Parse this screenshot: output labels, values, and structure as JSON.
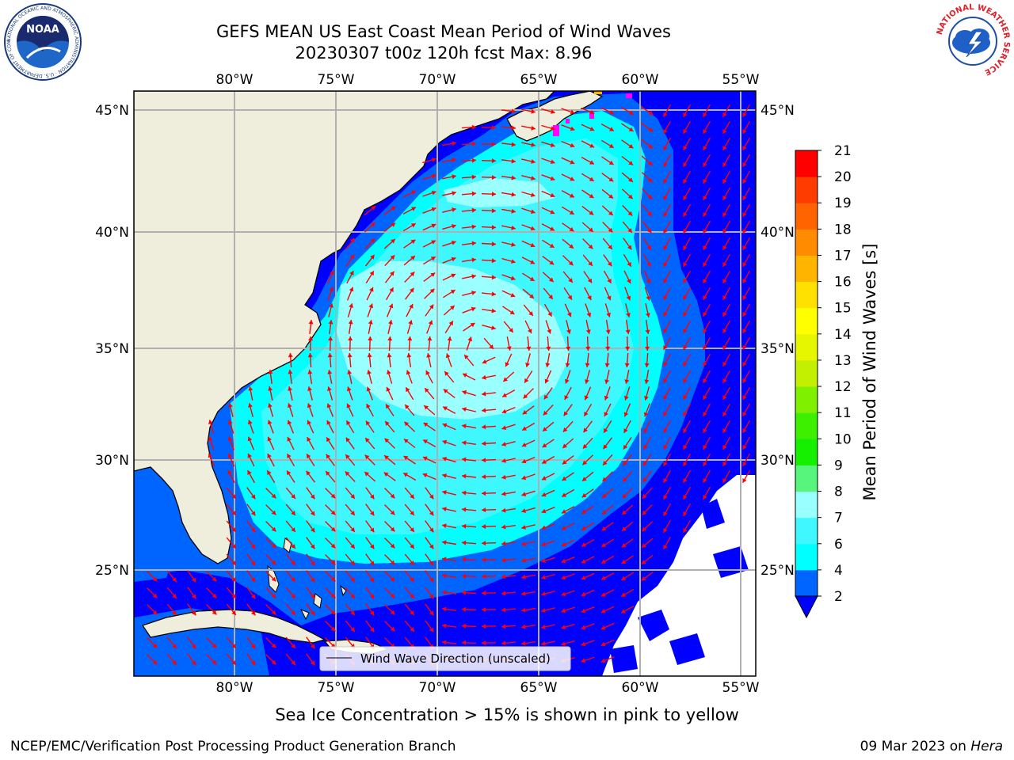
{
  "title_line1": "GEFS MEAN US East Coast Mean Period of Wind Waves",
  "title_line2": "20230307 t00z 120h fcst   Max: 8.96",
  "logos": {
    "left_text": "NOAA",
    "left_ring_text": "NATIONAL OCEANIC AND ATMOSPHERIC ADMINISTRATION · U.S. DEPARTMENT OF COMMERCE",
    "right_ring_text": "NATIONAL WEATHER SERVICE"
  },
  "map": {
    "lon_labels": [
      "80°W",
      "75°W",
      "70°W",
      "65°W",
      "60°W",
      "55°W"
    ],
    "lat_labels": [
      "45°N",
      "40°N",
      "35°N",
      "30°N",
      "25°N"
    ],
    "legend_label": "Wind Wave Direction (unscaled)",
    "land_color": "#efeddc",
    "arrow_color": "#ff0000"
  },
  "colorbar": {
    "title": "Mean Period of Wind Waves [s]",
    "ticks": [
      "2",
      "4",
      "6",
      "7",
      "8",
      "9",
      "10",
      "11",
      "12",
      "13",
      "14",
      "15",
      "16",
      "17",
      "18",
      "19",
      "20",
      "21"
    ],
    "colors": [
      "#0065ff",
      "#00ffff",
      "#3ff8ff",
      "#9affff",
      "#57f57b",
      "#14f000",
      "#3cf000",
      "#7ef000",
      "#c3f000",
      "#e6f500",
      "#ffff00",
      "#ffe100",
      "#ffb400",
      "#ff8c00",
      "#ff6400",
      "#ff3c00",
      "#ff0000"
    ],
    "under_color": "#0000ff"
  },
  "sea_ice_note": "Sea Ice Concentration > 15% is shown in pink to yellow",
  "footer": {
    "credit": "NCEP/EMC/Verification Post Processing Product Generation Branch",
    "date": "09 Mar 2023 on",
    "host": "Hera"
  }
}
